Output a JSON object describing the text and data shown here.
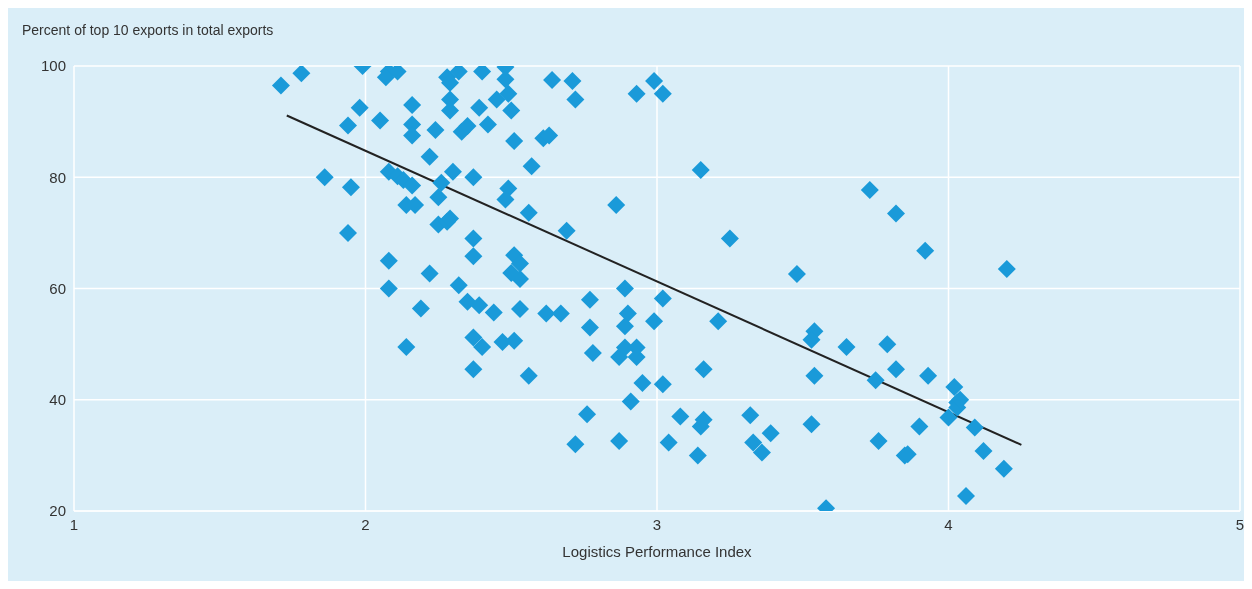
{
  "chart_data": {
    "type": "scatter",
    "ylabel": "Percent of top 10 exports in total exports",
    "xlabel": "Logistics Performance Index",
    "xlim": [
      1,
      5
    ],
    "xticks": [
      1,
      2,
      3,
      4,
      5
    ],
    "ylim": [
      20,
      100
    ],
    "yticks": [
      20,
      40,
      60,
      80,
      100
    ],
    "grid": true,
    "legend": false,
    "series": [
      {
        "color": "#1a9ad9",
        "marker": "diamond",
        "x": [
          1.71,
          1.78,
          1.99,
          2.08,
          2.11,
          2.07,
          1.98,
          1.94,
          2.05,
          2.16,
          2.16,
          2.16,
          2.22,
          2.24,
          2.28,
          2.29,
          2.32,
          2.29,
          2.29,
          2.33,
          2.35,
          2.4,
          2.39,
          2.42,
          2.45,
          2.48,
          2.48,
          2.49,
          2.5,
          2.51,
          2.64,
          2.71,
          2.72,
          2.61,
          2.63,
          2.57,
          2.3,
          2.37,
          2.08,
          2.11,
          2.13,
          2.16,
          2.14,
          2.17,
          1.86,
          1.95,
          1.94,
          2.25,
          2.26,
          2.25,
          2.28,
          2.29,
          2.37,
          2.49,
          2.48,
          2.56,
          2.69,
          2.86,
          3.15,
          2.99,
          3.02,
          2.93,
          3.25,
          2.08,
          2.22,
          2.08,
          2.19,
          2.14,
          2.32,
          2.37,
          2.35,
          2.39,
          2.44,
          2.37,
          2.4,
          2.47,
          2.37,
          2.51,
          2.53,
          2.5,
          2.53,
          2.53,
          2.56,
          2.51,
          2.62,
          2.67,
          2.77,
          2.77,
          2.78,
          2.76,
          2.72,
          2.87,
          2.9,
          2.89,
          2.89,
          2.89,
          2.93,
          2.93,
          2.91,
          2.95,
          2.99,
          3.02,
          3.02,
          2.87,
          3.04,
          3.08,
          3.15,
          3.16,
          3.14,
          3.16,
          3.21,
          3.32,
          3.33,
          3.36,
          3.39,
          3.48,
          3.54,
          3.53,
          3.54,
          3.53,
          3.58,
          3.65,
          3.73,
          3.82,
          3.92,
          4.2,
          3.79,
          3.75,
          3.82,
          3.76,
          3.85,
          3.86,
          3.9,
          3.93,
          4.02,
          4.03,
          4.03,
          4.0,
          4.04,
          4.09,
          4.12,
          4.19,
          4.06
        ],
        "values": [
          96.5,
          98.7,
          100,
          99,
          99,
          98,
          92.5,
          89.3,
          90.2,
          93,
          89.5,
          87.5,
          83.7,
          88.5,
          98,
          97,
          99,
          94,
          92,
          88.2,
          89.2,
          99,
          92.5,
          89.5,
          94,
          97.6,
          99.8,
          95,
          92,
          86.5,
          97.5,
          97.3,
          94,
          87,
          87.5,
          82,
          81,
          80,
          81,
          80.2,
          79.5,
          78.5,
          75,
          75,
          80,
          78.2,
          70,
          76.4,
          79,
          71.5,
          72,
          72.6,
          69,
          78,
          76,
          73.6,
          70.4,
          75,
          81.3,
          97.3,
          95,
          95,
          69,
          65,
          62.7,
          60,
          56.4,
          49.5,
          60.6,
          65.8,
          57.6,
          57,
          55.7,
          51.2,
          49.5,
          50.4,
          45.5,
          66,
          64.5,
          62.8,
          61.7,
          56.3,
          44.3,
          50.6,
          55.5,
          55.5,
          58,
          53,
          48.4,
          37.4,
          32,
          47.7,
          55.5,
          49.4,
          53.2,
          60,
          47.7,
          49.4,
          39.7,
          43,
          54.1,
          58.2,
          42.8,
          32.6,
          32.3,
          37,
          35.2,
          36.4,
          30,
          45.5,
          54.1,
          37.2,
          32.3,
          30.5,
          34,
          62.6,
          52.3,
          50.8,
          44.3,
          35.6,
          20.5,
          49.5,
          77.7,
          73.5,
          66.8,
          63.5,
          50,
          43.5,
          45.5,
          32.6,
          30,
          30.2,
          35.2,
          44.3,
          42.3,
          39.5,
          38.6,
          36.8,
          40,
          35,
          30.8,
          27.6,
          22.7
        ]
      },
      {
        "type": "line",
        "color": "#222222",
        "marker": "none",
        "line_style": "solid",
        "x": [
          1.73,
          4.25
        ],
        "values": [
          91.1,
          31.9
        ]
      }
    ]
  }
}
